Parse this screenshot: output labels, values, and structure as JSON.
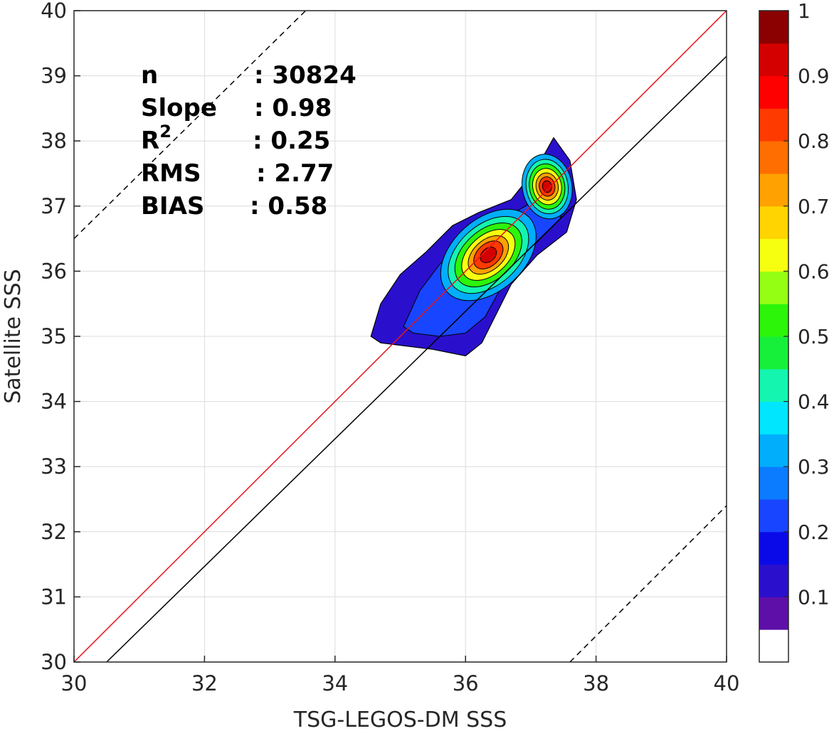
{
  "chart_data": {
    "type": "contour",
    "xlabel": "TSG-LEGOS-DM SSS",
    "ylabel": "Satellite SSS",
    "xlim": [
      30,
      40
    ],
    "ylim": [
      30,
      40
    ],
    "xticks": [
      "30",
      "32",
      "34",
      "36",
      "38",
      "40"
    ],
    "yticks": [
      "30",
      "31",
      "32",
      "33",
      "34",
      "35",
      "36",
      "37",
      "38",
      "39",
      "40"
    ],
    "grid": true,
    "stats": [
      {
        "label": "n",
        "value": ": 30824"
      },
      {
        "label": "Slope",
        "value": ": 0.98"
      },
      {
        "label": "R",
        "sup": "2",
        "value": ": 0.25"
      },
      {
        "label": "RMS",
        "value": ": 2.77"
      },
      {
        "label": "BIAS",
        "value": ": 0.58"
      }
    ],
    "lines": [
      {
        "name": "one-to-one",
        "color": "#e8121b",
        "style": "solid",
        "points": [
          [
            30,
            30
          ],
          [
            40,
            40
          ]
        ]
      },
      {
        "name": "regression",
        "color": "#000000",
        "style": "solid",
        "points": [
          [
            30.5,
            30
          ],
          [
            40,
            39.3
          ]
        ]
      },
      {
        "name": "upper-bound",
        "color": "#000000",
        "style": "dashed",
        "points": [
          [
            30,
            36.5
          ],
          [
            33.55,
            40
          ]
        ]
      },
      {
        "name": "lower-bound",
        "color": "#000000",
        "style": "dashed",
        "points": [
          [
            37.6,
            30
          ],
          [
            40,
            32.4
          ]
        ]
      }
    ],
    "density_peaks": [
      {
        "x": 36.2,
        "y": 36.2,
        "value": 0.95
      },
      {
        "x": 37.25,
        "y": 37.3,
        "value": 0.95
      }
    ],
    "colorbar": {
      "ticks": [
        "0.1",
        "0.2",
        "0.3",
        "0.4",
        "0.5",
        "0.6",
        "0.7",
        "0.8",
        "0.9",
        "1"
      ],
      "levels": [
        0.0,
        0.05,
        0.1,
        0.15,
        0.2,
        0.25,
        0.3,
        0.35,
        0.4,
        0.45,
        0.5,
        0.55,
        0.6,
        0.65,
        0.7,
        0.75,
        0.8,
        0.85,
        0.9,
        0.95,
        1.0
      ],
      "colors": [
        "#ffffff",
        "#5e0fa8",
        "#2a10cc",
        "#0a0ae8",
        "#1845ff",
        "#0b7bff",
        "#00aefc",
        "#00e6ff",
        "#14f5b0",
        "#16f03a",
        "#2cf50a",
        "#95ff13",
        "#f7ff10",
        "#ffd400",
        "#ffa100",
        "#ff6e00",
        "#ff3a00",
        "#ff0000",
        "#d40000",
        "#8b0000"
      ]
    }
  }
}
